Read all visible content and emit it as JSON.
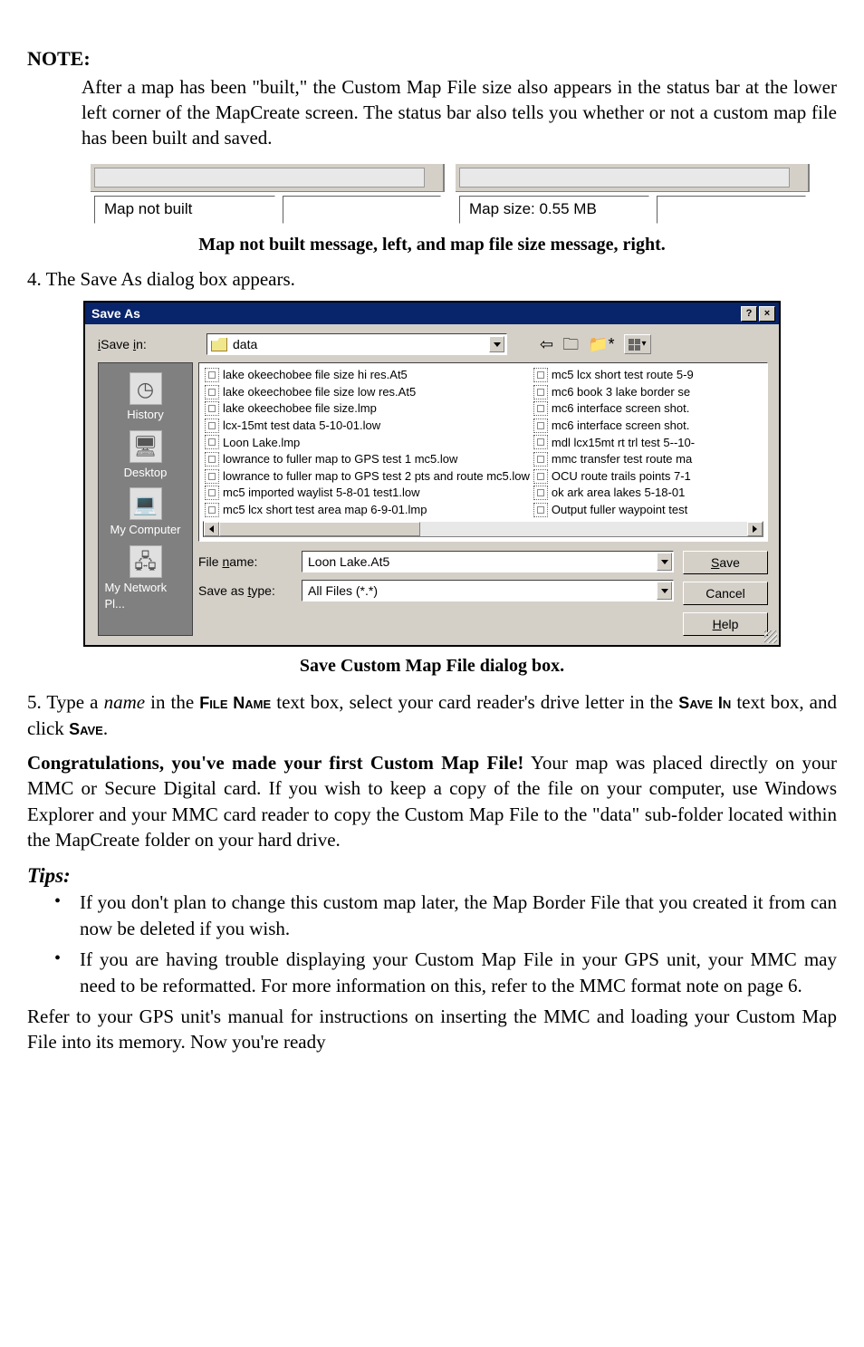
{
  "note": {
    "label": "NOTE:",
    "body": "After a map has been \"built,\" the Custom Map File size also appears in the status bar at the lower left corner of the MapCreate screen. The status bar also tells you whether or not a custom map file has been built and saved."
  },
  "statusbar": {
    "left_text": "Map not built",
    "right_text": "Map size: 0.55 MB"
  },
  "caption1": "Map not built message, left, and map file size message, right.",
  "step4": "4. The Save As dialog box appears.",
  "dialog": {
    "title": "Save As",
    "savein_label": "Save in:",
    "savein_value": "data",
    "places": [
      "History",
      "Desktop",
      "My Computer",
      "My Network Pl..."
    ],
    "files_left": [
      "lake okeechobee file size hi res.At5",
      "lake okeechobee file size low res.At5",
      "lake okeechobee file size.lmp",
      "lcx-15mt test data 5-10-01.low",
      "Loon Lake.lmp",
      "lowrance to fuller map to GPS test 1 mc5.low",
      "lowrance to fuller map to GPS test 2 pts and route mc5.low",
      "mc5 imported waylist 5-8-01 test1.low",
      "mc5 lcx short test area map 6-9-01.lmp"
    ],
    "files_right": [
      "mc5 lcx short test route 5-9",
      "mc6 book 3 lake border se",
      "mc6 interface screen shot.",
      "mc6 interface screen shot.",
      "mdl lcx15mt rt trl test 5--10-",
      "mmc transfer test route ma",
      "OCU route trails points 7-1",
      "ok ark area lakes 5-18-01",
      "Output fuller waypoint test"
    ],
    "filename_label": "File name:",
    "filename_value": "Loon Lake.At5",
    "saveastype_label": "Save as type:",
    "saveastype_value": "All Files (*.*)",
    "buttons": {
      "save": "Save",
      "cancel": "Cancel",
      "help": "Help"
    }
  },
  "caption2": "Save Custom Map File dialog box.",
  "step5_a": "5. Type a ",
  "step5_name": "name",
  "step5_b": " in the ",
  "step5_filename": "File Name",
  "step5_c": " text box, select your card reader's drive letter in the ",
  "step5_savein": "Save In",
  "step5_d": " text box, and click ",
  "step5_save": "Save",
  "step5_e": ".",
  "congrats_bold": "Congratulations, you've made your first Custom Map File!",
  "congrats_body": " Your map was placed directly on your MMC or Secure Digital card. If you wish to keep a copy of the file on your computer, use Windows Explorer and your MMC card reader to copy the Custom Map File to the \"data\" sub-folder located within the MapCreate folder on your hard drive.",
  "tips_label": "Tips:",
  "tips": [
    "If you don't plan to change this custom map later, the Map Border File that you created it from can now be deleted if you wish.",
    "If you are having trouble displaying your Custom Map File in your GPS unit, your MMC may need to be reformatted. For more information on this, refer to the MMC format note on page 6."
  ],
  "final_para": "Refer to your GPS unit's manual for instructions on inserting the MMC and loading your Custom Map File into its memory. Now you're ready"
}
